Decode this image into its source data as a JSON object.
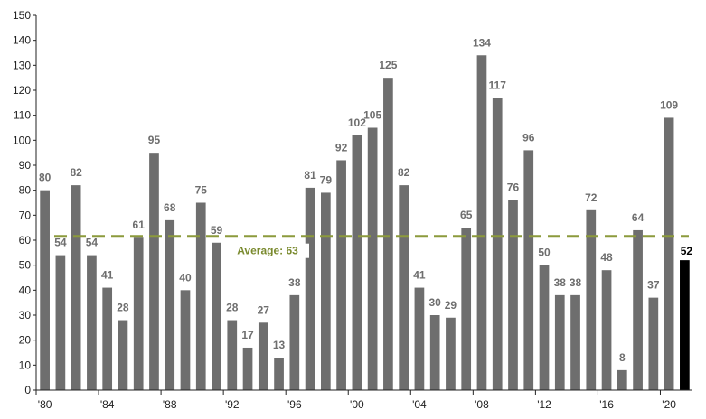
{
  "chart_data": {
    "type": "bar",
    "categories": [
      "1980",
      "1981",
      "1982",
      "1983",
      "1984",
      "1985",
      "1986",
      "1987",
      "1988",
      "1989",
      "1990",
      "1991",
      "1992",
      "1993",
      "1994",
      "1995",
      "1996",
      "1997",
      "1998",
      "1999",
      "2000",
      "2001",
      "2002",
      "2003",
      "2004",
      "2005",
      "2006",
      "2007",
      "2008",
      "2009",
      "2010",
      "2011",
      "2012",
      "2013",
      "2014",
      "2015",
      "2016",
      "2017",
      "2018",
      "2019",
      "2020",
      "2021"
    ],
    "values": [
      80,
      54,
      82,
      54,
      41,
      28,
      61,
      95,
      68,
      40,
      75,
      59,
      28,
      17,
      27,
      13,
      38,
      81,
      79,
      92,
      102,
      105,
      125,
      82,
      41,
      30,
      29,
      65,
      134,
      117,
      76,
      96,
      50,
      38,
      38,
      72,
      48,
      8,
      64,
      37,
      109,
      52
    ],
    "x_tick_labels": [
      "'80",
      "'84",
      "'88",
      "'92",
      "'96",
      "'00",
      "'04",
      "'08",
      "'12",
      "'16",
      "'20"
    ],
    "ylim": [
      0,
      150
    ],
    "y_ticks": [
      0,
      10,
      20,
      30,
      40,
      50,
      60,
      70,
      80,
      90,
      100,
      110,
      120,
      130,
      140,
      150
    ],
    "average": {
      "value": 63,
      "label": "Average: 63"
    },
    "grid": false,
    "title": "",
    "xlabel": "",
    "ylabel": ""
  },
  "colors": {
    "bar": "#6e6e6e",
    "highlight_bar": "#000000",
    "average_line": "#8c9a3c",
    "average_text": "#7a8a2e",
    "label": "#6e6e6e",
    "highlight_label": "#000000",
    "axis": "#222222"
  }
}
